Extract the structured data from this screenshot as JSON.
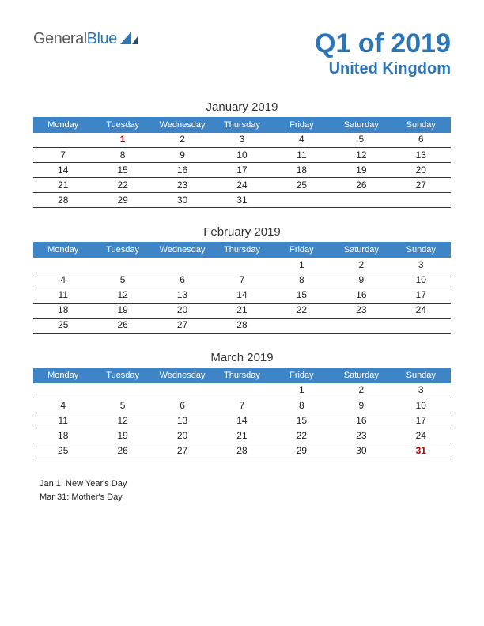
{
  "logo": {
    "part1": "General",
    "part2": "Blue"
  },
  "title": "Q1 of 2019",
  "subtitle": "United Kingdom",
  "colors": {
    "brand": "#2e75b6",
    "header_bg": "#3d85c6",
    "header_fg": "#ffffff",
    "holiday": "#c00000",
    "text": "#222222",
    "rule": "#333333"
  },
  "day_headers": [
    "Monday",
    "Tuesday",
    "Wednesday",
    "Thursday",
    "Friday",
    "Saturday",
    "Sunday"
  ],
  "months": [
    {
      "title": "January 2019",
      "weeks": [
        [
          "",
          {
            "d": "1",
            "holiday": true
          },
          "2",
          "3",
          "4",
          "5",
          "6"
        ],
        [
          "7",
          "8",
          "9",
          "10",
          "11",
          "12",
          "13"
        ],
        [
          "14",
          "15",
          "16",
          "17",
          "18",
          "19",
          "20"
        ],
        [
          "21",
          "22",
          "23",
          "24",
          "25",
          "26",
          "27"
        ],
        [
          "28",
          "29",
          "30",
          "31",
          "",
          "",
          ""
        ]
      ]
    },
    {
      "title": "February 2019",
      "weeks": [
        [
          "",
          "",
          "",
          "",
          "1",
          "2",
          "3"
        ],
        [
          "4",
          "5",
          "6",
          "7",
          "8",
          "9",
          "10"
        ],
        [
          "11",
          "12",
          "13",
          "14",
          "15",
          "16",
          "17"
        ],
        [
          "18",
          "19",
          "20",
          "21",
          "22",
          "23",
          "24"
        ],
        [
          "25",
          "26",
          "27",
          "28",
          "",
          "",
          ""
        ]
      ]
    },
    {
      "title": "March 2019",
      "weeks": [
        [
          "",
          "",
          "",
          "",
          "1",
          "2",
          "3"
        ],
        [
          "4",
          "5",
          "6",
          "7",
          "8",
          "9",
          "10"
        ],
        [
          "11",
          "12",
          "13",
          "14",
          "15",
          "16",
          "17"
        ],
        [
          "18",
          "19",
          "20",
          "21",
          "22",
          "23",
          "24"
        ],
        [
          "25",
          "26",
          "27",
          "28",
          "29",
          "30",
          {
            "d": "31",
            "holiday": true
          }
        ]
      ]
    }
  ],
  "notes": [
    "Jan 1: New Year's Day",
    "Mar 31: Mother's Day"
  ]
}
